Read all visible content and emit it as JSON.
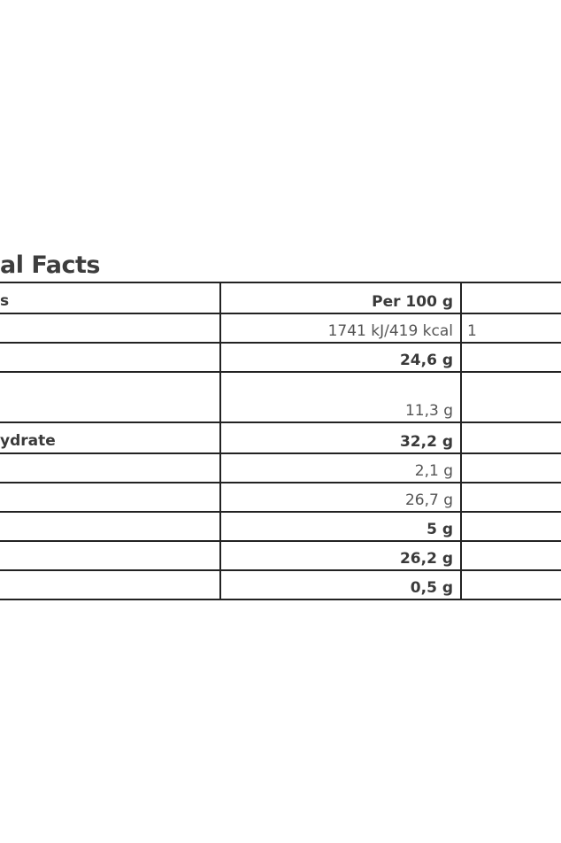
{
  "title": "al Facts",
  "table": {
    "header": {
      "label": "s",
      "per100": "Per 100 g",
      "extra": ""
    },
    "rows": [
      {
        "label": "",
        "value": "1741 kJ/419 kcal",
        "bold": false,
        "extra": "1"
      },
      {
        "label": "",
        "value": "24,6 g",
        "bold": true,
        "extra": ""
      },
      {
        "label": "",
        "value": "11,3 g",
        "bold": false,
        "extra": ""
      },
      {
        "label": "ydrate",
        "value": "32,2 g",
        "bold": true,
        "extra": ""
      },
      {
        "label": "",
        "value": "2,1 g",
        "bold": false,
        "extra": ""
      },
      {
        "label": "",
        "value": "26,7 g",
        "bold": false,
        "extra": ""
      },
      {
        "label": "",
        "value": "5 g",
        "bold": true,
        "extra": ""
      },
      {
        "label": "",
        "value": "26,2 g",
        "bold": true,
        "extra": ""
      },
      {
        "label": "",
        "value": "0,5 g",
        "bold": true,
        "extra": ""
      }
    ]
  }
}
